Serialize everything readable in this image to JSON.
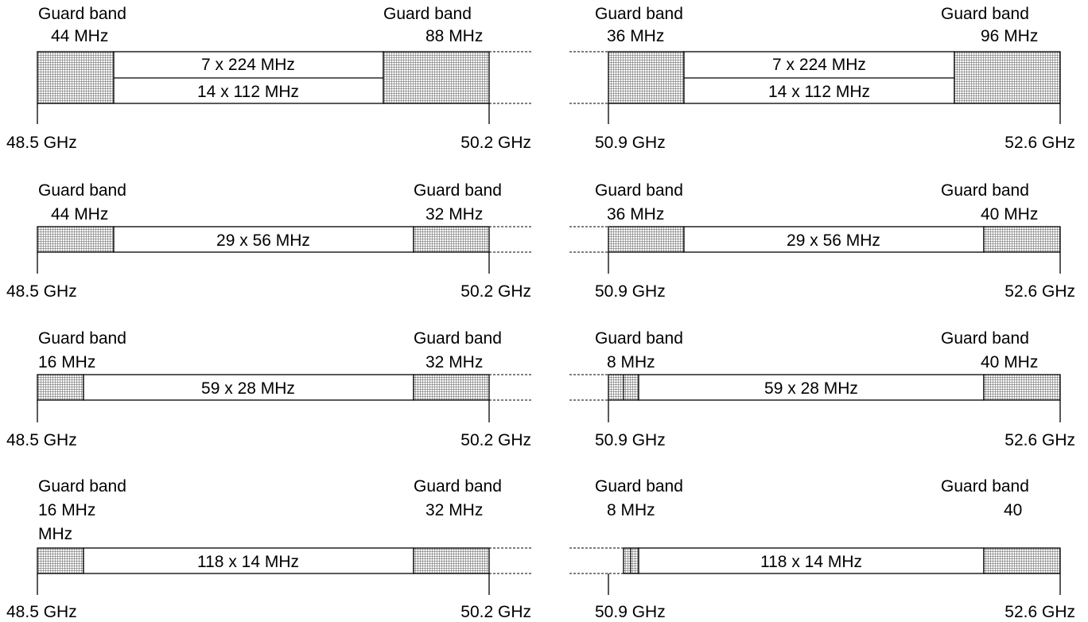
{
  "guard_pattern_color": "#a0a0a0",
  "rows": [
    {
      "left": {
        "guard_left": {
          "title": "Guard band",
          "width": "44 MHz"
        },
        "guard_right": {
          "title": "Guard band",
          "width": "88 MHz"
        },
        "channels": [
          "7 x 224 MHz",
          "14 x 112 MHz"
        ],
        "start": "48.5 GHz",
        "end": "50.2 GHz"
      },
      "right": {
        "guard_left": {
          "title": "Guard band",
          "width": "36 MHz"
        },
        "guard_right": {
          "title": "Guard band",
          "width": "96 MHz"
        },
        "channels": [
          "7 x 224 MHz",
          "14 x 112 MHz"
        ],
        "start": "50.9 GHz",
        "end": "52.6 GHz"
      }
    },
    {
      "left": {
        "guard_left": {
          "title": "Guard band",
          "width": "44 MHz"
        },
        "guard_right": {
          "title": "Guard band",
          "width": "32 MHz"
        },
        "channels": [
          "29 x 56 MHz"
        ],
        "start": "48.5 GHz",
        "end": "50.2 GHz"
      },
      "right": {
        "guard_left": {
          "title": "Guard band",
          "width": "36 MHz"
        },
        "guard_right": {
          "title": "Guard band",
          "width": "40 MHz"
        },
        "channels": [
          "29 x 56 MHz"
        ],
        "start": "50.9 GHz",
        "end": "52.6 GHz"
      }
    },
    {
      "left": {
        "guard_left": {
          "title": "Guard band",
          "width": "16 MHz"
        },
        "guard_right": {
          "title": "Guard band",
          "width": "32 MHz"
        },
        "channels": [
          "59 x 28 MHz"
        ],
        "start": "48.5 GHz",
        "end": "50.2 GHz"
      },
      "right": {
        "guard_left": {
          "title": "Guard band",
          "width": "8 MHz"
        },
        "guard_right": {
          "title": "Guard band",
          "width": "40 MHz"
        },
        "channels": [
          "59 x 28 MHz"
        ],
        "start": "50.9 GHz",
        "end": "52.6 GHz"
      }
    },
    {
      "left": {
        "guard_left": {
          "title": "Guard band",
          "width": "16 MHz",
          "extra": "MHz"
        },
        "guard_right": {
          "title": "Guard band",
          "width": "32 MHz"
        },
        "channels": [
          "118 x 14 MHz"
        ],
        "start": "48.5 GHz",
        "end": "50.2 GHz"
      },
      "right": {
        "guard_left": {
          "title": "Guard band",
          "width": "8 MHz"
        },
        "guard_right": {
          "title": "Guard band",
          "width": "40"
        },
        "channels": [
          "118 x 14 MHz"
        ],
        "start": "50.9 GHz",
        "end": "52.6 GHz"
      }
    }
  ]
}
